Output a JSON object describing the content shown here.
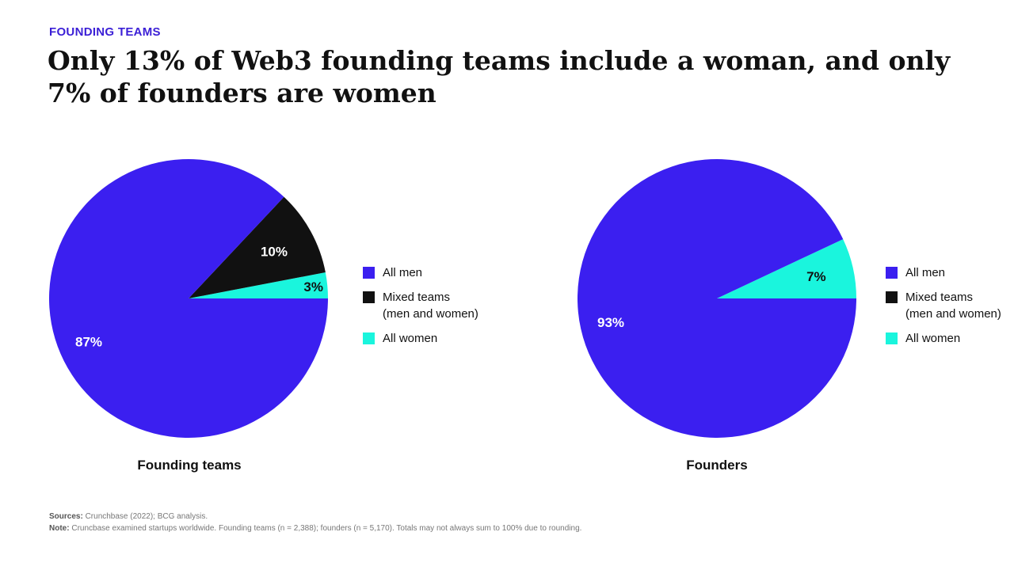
{
  "eyebrow": "FOUNDING TEAMS",
  "headline": "Only 13% of Web3 founding teams include a woman, and only 7% of founders are women",
  "colors": {
    "all_men": "#3b1ff0",
    "mixed": "#111111",
    "all_women": "#1af5dd"
  },
  "chart_data": [
    {
      "type": "pie",
      "title": "Founding teams",
      "slices": [
        {
          "label": "All men",
          "value": 87,
          "display": "87%",
          "color": "#3b1ff0",
          "label_color": "#ffffff"
        },
        {
          "label": "Mixed teams (men and women)",
          "value": 10,
          "display": "10%",
          "color": "#111111",
          "label_color": "#ffffff"
        },
        {
          "label": "All women",
          "value": 3,
          "display": "3%",
          "color": "#1af5dd",
          "label_color": "#111111"
        }
      ],
      "legend": [
        {
          "label": "All men",
          "sub": "",
          "color": "#3b1ff0"
        },
        {
          "label": "Mixed teams",
          "sub": "(men and women)",
          "color": "#111111"
        },
        {
          "label": "All women",
          "sub": "",
          "color": "#1af5dd"
        }
      ]
    },
    {
      "type": "pie",
      "title": "Founders",
      "slices": [
        {
          "label": "All men",
          "value": 93,
          "display": "93%",
          "color": "#3b1ff0",
          "label_color": "#ffffff"
        },
        {
          "label": "All women",
          "value": 7,
          "display": "7%",
          "color": "#1af5dd",
          "label_color": "#111111"
        }
      ],
      "legend": [
        {
          "label": "All men",
          "sub": "",
          "color": "#3b1ff0"
        },
        {
          "label": "Mixed teams",
          "sub": "(men and women)",
          "color": "#111111"
        },
        {
          "label": "All women",
          "sub": "",
          "color": "#1af5dd"
        }
      ]
    }
  ],
  "footer": {
    "sources_label": "Sources:",
    "sources_text": " Crunchbase (2022); BCG analysis.",
    "note_label": "Note:",
    "note_text": " Cruncbase examined startups worldwide. Founding teams (n = 2,388); founders (n = 5,170). Totals may not always sum to 100% due to rounding."
  }
}
